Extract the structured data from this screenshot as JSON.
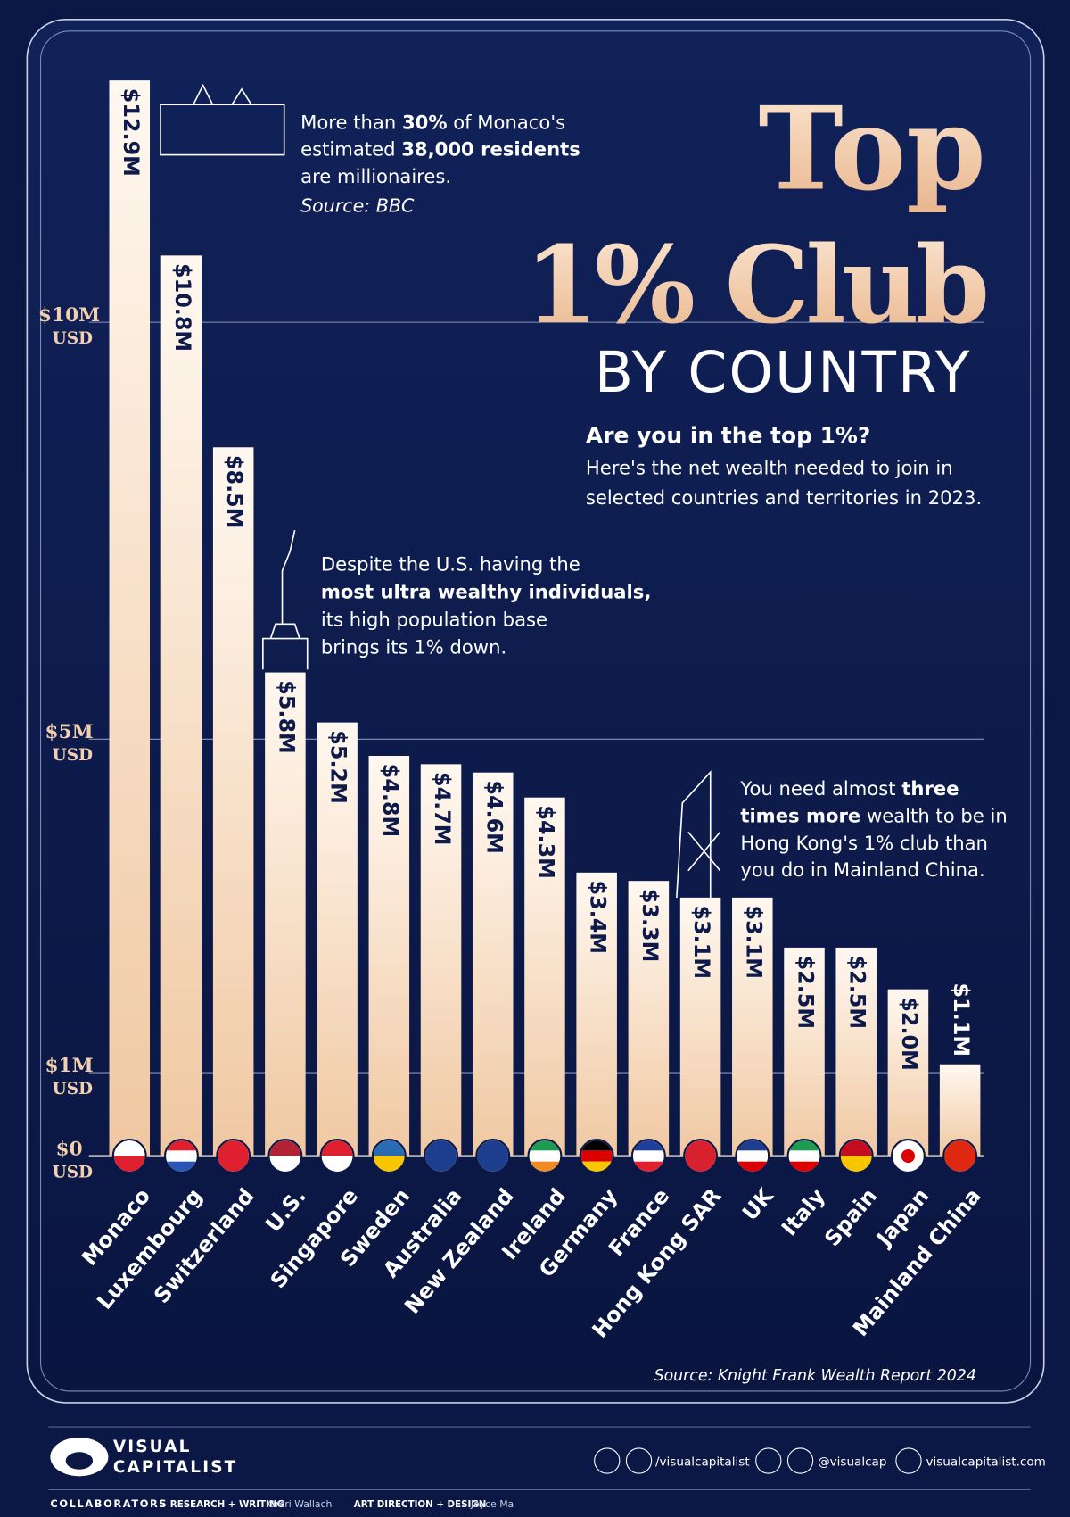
{
  "chart_data": {
    "type": "bar",
    "title": [
      "Top",
      "1% Club"
    ],
    "subtitle": "BY COUNTRY",
    "question": "Are you in the top 1%?",
    "description": [
      "Here's the net wealth needed to join in",
      "selected countries and territories in 2023."
    ],
    "categories": [
      "Monaco",
      "Luxembourg",
      "Switzerland",
      "U.S.",
      "Singapore",
      "Sweden",
      "Australia",
      "New Zealand",
      "Ireland",
      "Germany",
      "France",
      "Hong Kong SAR",
      "UK",
      "Italy",
      "Spain",
      "Japan",
      "Mainland China"
    ],
    "values": [
      12.9,
      10.8,
      8.5,
      5.8,
      5.2,
      4.8,
      4.7,
      4.6,
      4.3,
      3.4,
      3.3,
      3.1,
      3.1,
      2.5,
      2.5,
      2.0,
      1.1
    ],
    "value_labels": [
      "$12.9M",
      "$10.8M",
      "$8.5M",
      "$5.8M",
      "$5.2M",
      "$4.8M",
      "$4.7M",
      "$4.6M",
      "$4.3M",
      "$3.4M",
      "$3.3M",
      "$3.1M",
      "$3.1M",
      "$2.5M",
      "$2.5M",
      "$2.0M",
      "$1.1M"
    ],
    "ylim": [
      0,
      13
    ],
    "yticks": [
      {
        "value": 0,
        "label": "$0 USD"
      },
      {
        "value": 1,
        "label": "$1M USD"
      },
      {
        "value": 5,
        "label": "$5M USD"
      },
      {
        "value": 10,
        "label": "$10M USD"
      }
    ],
    "grid": true,
    "color": "#f2cfae",
    "annotations": [
      {
        "lines": [
          [
            {
              "t": "More than "
            },
            {
              "t": "30%",
              "b": true
            },
            {
              "t": " of Monaco's"
            }
          ],
          [
            {
              "t": "estimated "
            },
            {
              "t": "38,000 residents",
              "b": true
            }
          ],
          [
            {
              "t": "are millionaires."
            }
          ]
        ],
        "source": "Source: BBC"
      },
      {
        "lines": [
          [
            {
              "t": "Despite the U.S. having the"
            }
          ],
          [
            {
              "t": "most ultra wealthy individuals,",
              "b": true
            }
          ],
          [
            {
              "t": "its high population base"
            }
          ],
          [
            {
              "t": "brings its 1% down."
            }
          ]
        ]
      },
      {
        "lines": [
          [
            {
              "t": "You need almost "
            },
            {
              "t": "three",
              "b": true
            }
          ],
          [
            {
              "t": "times more",
              "b": true
            },
            {
              "t": " wealth to be in"
            }
          ],
          [
            {
              "t": "Hong Kong's 1% club than"
            }
          ],
          [
            {
              "t": "you do in Mainland China."
            }
          ]
        ]
      }
    ],
    "source": "Source: Knight Frank Wealth Report 2024"
  },
  "footer": {
    "logo": [
      "VISUAL",
      "CAPITALIST"
    ],
    "links": [
      "/visualcapitalist",
      "@visualcap",
      "visualcapitalist.com"
    ],
    "collaborators": "COLLABORATORS",
    "credits": [
      {
        "role": "RESEARCH + WRITING",
        "name": "Omri Wallach"
      },
      {
        "role": "ART DIRECTION + DESIGN",
        "name": "Joyce Ma"
      }
    ]
  }
}
